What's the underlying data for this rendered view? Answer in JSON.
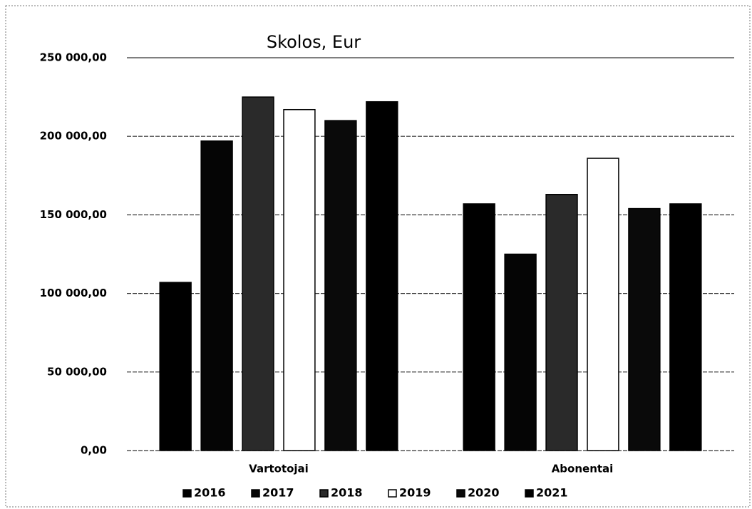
{
  "chart_data": {
    "type": "bar",
    "title": "Skolos, Eur",
    "categories": [
      "Vartotojai",
      "Abonentai"
    ],
    "series": [
      {
        "name": "2016",
        "color": "#000000",
        "values": [
          107000,
          157000
        ]
      },
      {
        "name": "2017",
        "color": "#050505",
        "values": [
          197000,
          125000
        ]
      },
      {
        "name": "2018",
        "color": "#2a2a2a",
        "values": [
          225000,
          163000
        ]
      },
      {
        "name": "2019",
        "color": "#ffffff",
        "values": [
          217000,
          186000
        ]
      },
      {
        "name": "2020",
        "color": "#0a0a0a",
        "values": [
          210000,
          154000
        ]
      },
      {
        "name": "2021",
        "color": "#000000",
        "values": [
          222000,
          157000
        ]
      }
    ],
    "ylim": [
      0,
      250000
    ],
    "yticks": [
      {
        "value": 0,
        "label": "0,00"
      },
      {
        "value": 50000,
        "label": "50 000,00"
      },
      {
        "value": 100000,
        "label": "100 000,00"
      },
      {
        "value": 150000,
        "label": "150 000,00"
      },
      {
        "value": 200000,
        "label": "200 000,00"
      },
      {
        "value": 250000,
        "label": "250 000,00"
      }
    ],
    "grid": true,
    "legend": "bottom"
  }
}
